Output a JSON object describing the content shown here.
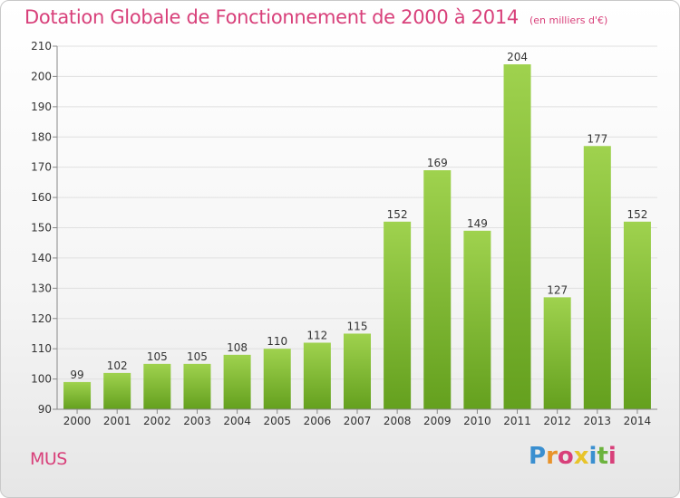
{
  "title": "Dotation Globale de Fonctionnement de 2000 à 2014",
  "unit_note": "(en milliers d'€)",
  "commune": "MUS",
  "logo": {
    "text": "Proxiti",
    "colors": [
      "#3a8fd0",
      "#e8932a",
      "#d8407a",
      "#e8c42a",
      "#3a8fd0",
      "#6cb33e",
      "#d8407a"
    ]
  },
  "colors": {
    "bar_light": "#9fd24e",
    "bar_dark": "#64a01e",
    "accent": "#d8407a",
    "text": "#333333",
    "grid": "#e0e0e0"
  },
  "chart_data": {
    "type": "bar",
    "categories": [
      "2000",
      "2001",
      "2002",
      "2003",
      "2004",
      "2005",
      "2006",
      "2007",
      "2008",
      "2009",
      "2010",
      "2011",
      "2012",
      "2013",
      "2014"
    ],
    "values": [
      99,
      102,
      105,
      105,
      108,
      110,
      112,
      115,
      152,
      169,
      149,
      204,
      127,
      177,
      152
    ],
    "ylim": [
      90,
      210
    ],
    "yticks": [
      90,
      100,
      110,
      120,
      130,
      140,
      150,
      160,
      170,
      180,
      190,
      200,
      210
    ],
    "grid": true,
    "data_labels": true
  }
}
